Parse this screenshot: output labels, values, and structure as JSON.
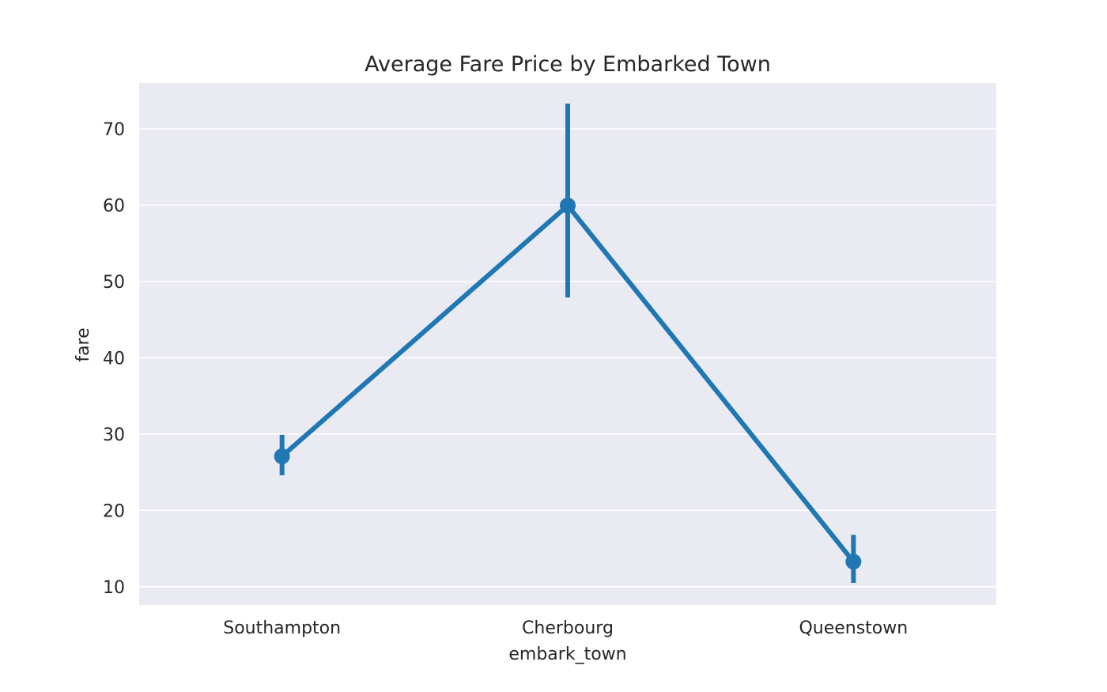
{
  "chart_data": {
    "type": "line",
    "title": "Average Fare Price by Embarked Town",
    "xlabel": "embark_town",
    "ylabel": "fare",
    "categories": [
      "Southampton",
      "Cherbourg",
      "Queenstown"
    ],
    "series": [
      {
        "values": [
          27.08,
          59.95,
          13.28
        ],
        "ci_low": [
          24.6,
          47.9,
          10.5
        ],
        "ci_high": [
          29.9,
          73.3,
          16.8
        ]
      }
    ],
    "ylim": [
      7.6,
      76.0
    ],
    "yticks": [
      "10",
      "20",
      "30",
      "40",
      "50",
      "60",
      "70"
    ],
    "grid": true,
    "colors": {
      "series": "#1f77b4",
      "plot_background": "#eaeaf2",
      "grid": "#ffffff",
      "text": "#262626"
    }
  }
}
